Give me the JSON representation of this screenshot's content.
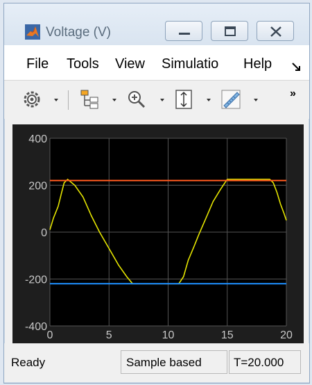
{
  "window": {
    "title": "Voltage (V)"
  },
  "menu": {
    "items": [
      "File",
      "Tools",
      "View",
      "Simulatio",
      "Help"
    ],
    "overflow_icon": "chevron-arrow-icon"
  },
  "toolbar": {
    "icons": [
      "settings-gear-icon",
      "signal-tree-icon",
      "zoom-in-icon",
      "fit-axes-icon",
      "measure-ruler-icon"
    ],
    "overflow_label": "»"
  },
  "status": {
    "state": "Ready",
    "mode": "Sample based",
    "time": "T=20.000"
  },
  "colors": {
    "scope_bg": "#1e1e1e",
    "axes_bg": "#000000",
    "grid": "#555555",
    "tick_text": "#c8c8c8",
    "signal": "#e5e500",
    "upper_limit": "#ff5a1f",
    "lower_limit": "#1e90ff"
  },
  "chart_data": {
    "type": "line",
    "title": "",
    "xlabel": "",
    "ylabel": "",
    "xlim": [
      0,
      20
    ],
    "ylim": [
      -400,
      400
    ],
    "xticks": [
      "0",
      "5",
      "10",
      "15",
      "20"
    ],
    "yticks": [
      "400",
      "200",
      "0",
      "-200",
      "-400"
    ],
    "grid": true,
    "series": [
      {
        "x": [
          0,
          0.3,
          0.7,
          1.0,
          1.2,
          1.5,
          2.1,
          2.8,
          3.5,
          4.2,
          5.0,
          5.8,
          6.5,
          7.0,
          10.9,
          11.3,
          11.7,
          12.2,
          12.6,
          13.2,
          13.8,
          14.4,
          14.8,
          15.0,
          18.6,
          18.9,
          19.2,
          19.5,
          19.8,
          20.0
        ],
        "y": [
          10,
          60,
          110,
          170,
          210,
          225,
          200,
          150,
          70,
          0,
          -70,
          -140,
          -190,
          -220,
          -220,
          -190,
          -120,
          -60,
          -10,
          60,
          130,
          180,
          210,
          225,
          225,
          210,
          170,
          120,
          80,
          50
        ]
      },
      {
        "x": [
          0,
          20
        ],
        "y": [
          220,
          220
        ]
      },
      {
        "x": [
          0,
          20
        ],
        "y": [
          -220,
          -220
        ]
      }
    ]
  }
}
